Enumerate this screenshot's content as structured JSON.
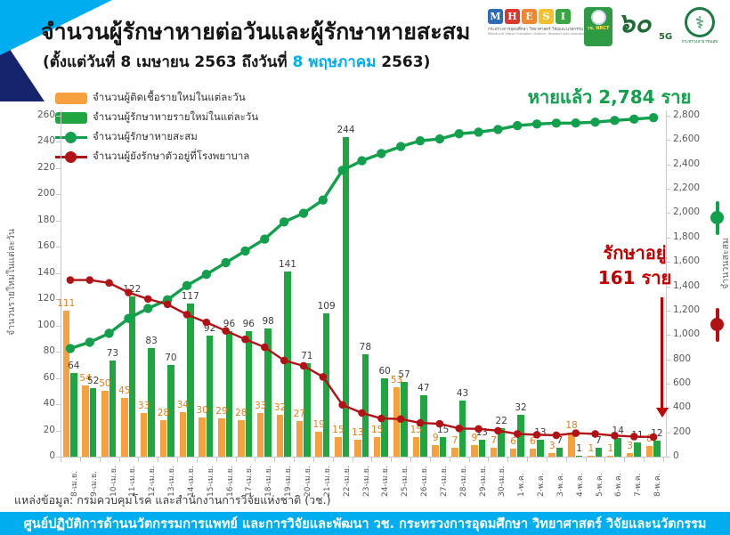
{
  "header": {
    "title": "จำนวนผู้รักษาหายต่อวันและผู้รักษาหายสะสม",
    "subtitle_prefix": "(ตั้งแต่วันที่ 8 เมษายน 2563 ถึงวันที่ ",
    "subtitle_highlight": "8 พฤษภาคม",
    "subtitle_suffix": " 2563)"
  },
  "logos": {
    "mhesi_letters": [
      "M",
      "H",
      "E",
      "S",
      "I"
    ],
    "mhesi_tile_colors": [
      "#2E6DB4",
      "#D9382E",
      "#EF8732",
      "#F2C12E",
      "#3BA546"
    ],
    "mhesi_thai": "กระทรวงการอุดมศึกษา วิทยาศาสตร์ วิจัยและนวัตกรรม",
    "mhesi_eng": "Ministry of Higher Education, Science, Research and Innovation",
    "nrct_label": "วช. NRCT",
    "sixty_num": "๖๐",
    "sixty_5g": "5G",
    "moph_symbol": "⚕",
    "moph_label": "กระทรวงสาธารณสุข"
  },
  "annotations": {
    "recovered_total": "หายแล้ว 2,784 ราย",
    "in_hospital_line1": "รักษาอยู่",
    "in_hospital_line2": "161 ราย"
  },
  "chart_data": {
    "type": "combo",
    "categories": [
      "8-เม.ย.",
      "9-เม.ย.",
      "10-เม.ย.",
      "11-เม.ย.",
      "12-เม.ย.",
      "13-เม.ย.",
      "14-เม.ย.",
      "15-เม.ย.",
      "16-เม.ย.",
      "17-เม.ย.",
      "18-เม.ย.",
      "19-เม.ย.",
      "20-เม.ย.",
      "21-เม.ย.",
      "22-เม.ย.",
      "23-เม.ย.",
      "24-เม.ย.",
      "25-เม.ย.",
      "26-เม.ย.",
      "27-เม.ย.",
      "28-เม.ย.",
      "29-เม.ย.",
      "30-เม.ย.",
      "1-พ.ค.",
      "2-พ.ค.",
      "3-พ.ค.",
      "4-พ.ค.",
      "5-พ.ค.",
      "6-พ.ค.",
      "7-พ.ค.",
      "8-พ.ค."
    ],
    "series": [
      {
        "name": "จำนวนผู้ติดเชื้อรายใหม่ในแต่ละวัน",
        "type": "bar",
        "axis": "left",
        "color": "#F6A13E",
        "label_color": "#E2801A",
        "values": [
          111,
          54,
          50,
          45,
          33,
          28,
          34,
          30,
          29,
          28,
          33,
          32,
          27,
          19,
          15,
          13,
          15,
          53,
          15,
          9,
          7,
          9,
          7,
          6,
          6,
          3,
          18,
          1,
          1,
          3,
          8
        ]
      },
      {
        "name": "จำนวนผู้รักษาหายรายใหม่ในแต่ละวัน",
        "type": "bar",
        "axis": "left",
        "color": "#1FA640",
        "label_color": "#3d3d3d",
        "values": [
          64,
          52,
          73,
          122,
          83,
          70,
          117,
          92,
          96,
          96,
          98,
          141,
          71,
          109,
          244,
          78,
          60,
          57,
          47,
          15,
          43,
          13,
          22,
          32,
          13,
          7,
          1,
          7,
          14,
          11,
          12
        ]
      },
      {
        "name": "จำนวนผู้รักษาหายสะสม",
        "type": "line",
        "axis": "right",
        "color": "#12A04C",
        "values": [
          888,
          940,
          1013,
          1135,
          1218,
          1288,
          1405,
          1497,
          1593,
          1689,
          1787,
          1928,
          1999,
          2108,
          2352,
          2430,
          2490,
          2547,
          2594,
          2609,
          2652,
          2665,
          2687,
          2719,
          2732,
          2739,
          2740,
          2747,
          2761,
          2772,
          2784
        ]
      },
      {
        "name": "จำนวนผู้ยังรักษาตัวอยู่ที่โรงพยาบาล",
        "type": "line",
        "axis": "right",
        "color": "#B11216",
        "values": [
          1451,
          1451,
          1427,
          1348,
          1295,
          1251,
          1167,
          1103,
          1033,
          964,
          899,
          790,
          746,
          655,
          425,
          359,
          314,
          309,
          277,
          270,
          232,
          228,
          213,
          187,
          180,
          176,
          193,
          187,
          173,
          165,
          161
        ]
      }
    ],
    "left_axis": {
      "label": "จำนวนรายใหม่ในแต่ละวัน",
      "min": 0,
      "max": 260,
      "step": 20
    },
    "right_axis": {
      "label": "จำนวนสะสม",
      "min": 0,
      "max": 2800,
      "step": 200
    },
    "grid": false,
    "legend_position": "top-left",
    "title": "จำนวนผู้รักษาหายต่อวันและผู้รักษาหายสะสม"
  },
  "footer": {
    "source": "แหล่งข้อมูล: กรมควบคุมโรค และสำนักงานการวิจัยแห่งชาติ (วช.)",
    "bottom_bar": "ศูนย์ปฏิบัติการด้านนวัตกรรมการแพทย์ และการวิจัยและพัฒนา    วช.    กระทรวงการอุดมศึกษา วิทยาศาสตร์ วิจัยและนวัตกรรม"
  },
  "colors": {
    "accent_blue": "#00AEEF",
    "corner_navy": "#16246d",
    "orange_bar": "#F6A13E",
    "green_bar": "#1FA640",
    "green_line": "#12A04C",
    "red_line": "#B11216",
    "annotation_red": "#C00000"
  }
}
